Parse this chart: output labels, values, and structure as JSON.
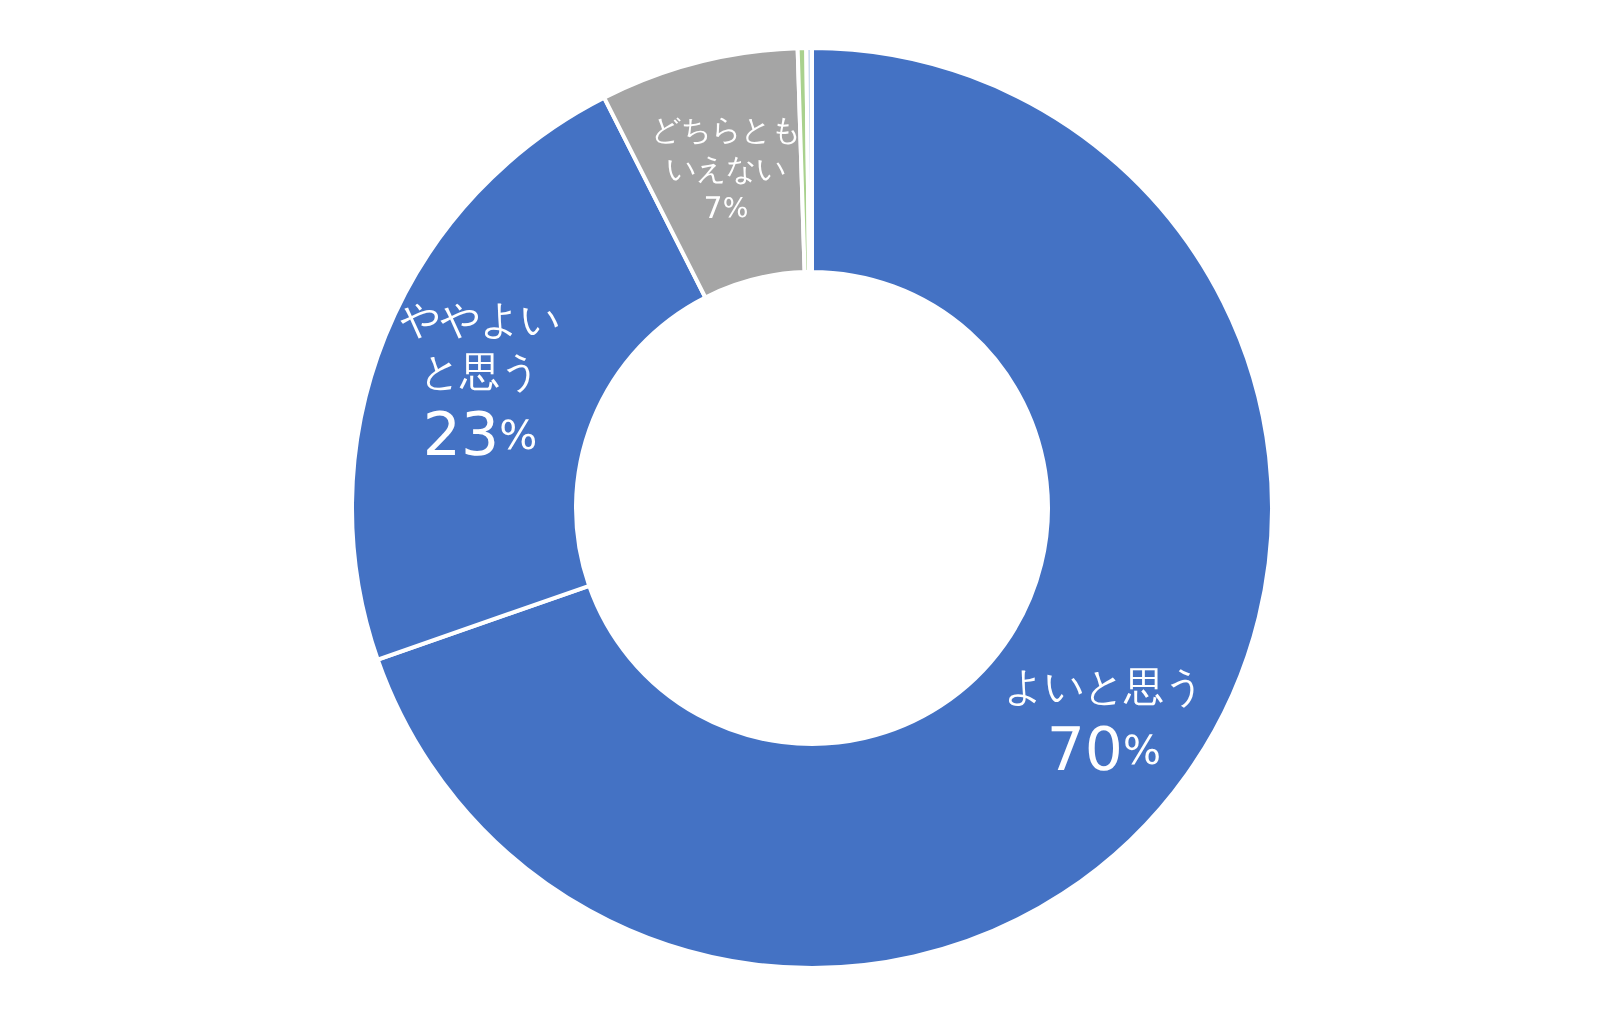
{
  "chart_data": {
    "type": "donut",
    "categories": [
      "よいと思う",
      "ややよいと思う",
      "どちらともいえない",
      null,
      null
    ],
    "values": [
      70,
      23,
      7,
      0.3,
      0.2
    ],
    "colors": [
      "#4472c4",
      "#4472c4",
      "#a5a5a5",
      "#a9d18e",
      "#c9daf0"
    ],
    "value_labels": [
      "70%",
      "23%",
      "7%",
      null,
      null
    ]
  }
}
